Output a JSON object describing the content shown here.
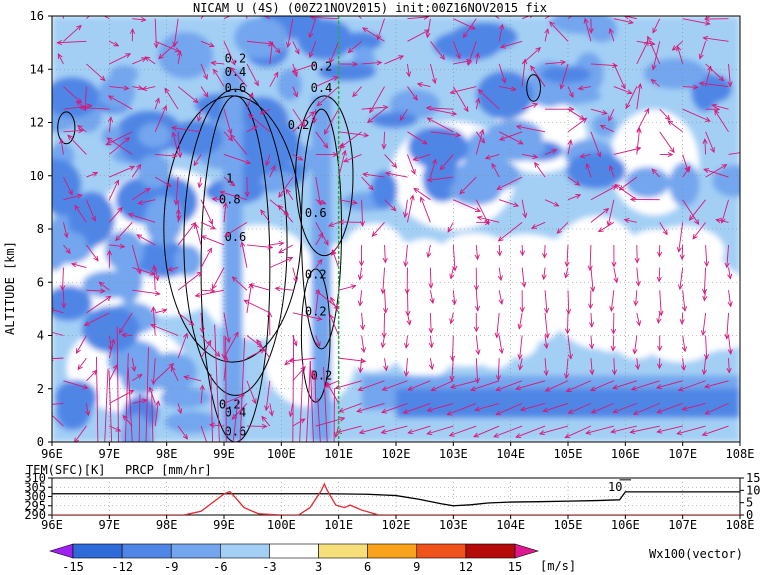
{
  "chart_data": [
    {
      "type": "heatmap",
      "title": "NICAM U (4S) (00Z21NOV2015) init:00Z16NOV2015 fix",
      "xlabel": "",
      "ylabel": "ALTITUDE [km]",
      "xlim": [
        96,
        108
      ],
      "ylim": [
        0,
        16
      ],
      "x_tick_labels": [
        "96E",
        "97E",
        "98E",
        "99E",
        "100E",
        "101E",
        "102E",
        "103E",
        "104E",
        "105E",
        "106E",
        "107E",
        "108E"
      ],
      "y_tick_labels": [
        "0",
        "2",
        "4",
        "6",
        "8",
        "10",
        "12",
        "14",
        "16"
      ],
      "x_ticks": [
        96,
        97,
        98,
        99,
        100,
        101,
        102,
        103,
        104,
        105,
        106,
        107,
        108
      ],
      "y_ticks": [
        0,
        2,
        4,
        6,
        8,
        10,
        12,
        14,
        16
      ],
      "grid": true,
      "marker_line_lon": 101.0,
      "contour_labels": [
        {
          "text": "0.2",
          "lon": 99.2,
          "alt": 14.4
        },
        {
          "text": "0.4",
          "lon": 99.2,
          "alt": 13.9
        },
        {
          "text": "0.6",
          "lon": 99.2,
          "alt": 13.3
        },
        {
          "text": "1",
          "lon": 99.1,
          "alt": 9.9
        },
        {
          "text": "0.8",
          "lon": 99.1,
          "alt": 9.1
        },
        {
          "text": "0.6",
          "lon": 99.2,
          "alt": 7.7
        },
        {
          "text": "0.2",
          "lon": 99.1,
          "alt": 1.4
        },
        {
          "text": "0.4",
          "lon": 99.2,
          "alt": 1.1
        },
        {
          "text": "0.6",
          "lon": 99.2,
          "alt": 0.4
        },
        {
          "text": "0.2",
          "lon": 100.7,
          "alt": 14.1
        },
        {
          "text": "0.4",
          "lon": 100.7,
          "alt": 13.3
        },
        {
          "text": "0.2",
          "lon": 100.3,
          "alt": 11.9
        },
        {
          "text": "0.6",
          "lon": 100.6,
          "alt": 8.6
        },
        {
          "text": "0.2",
          "lon": 100.6,
          "alt": 6.3
        },
        {
          "text": "0.2",
          "lon": 100.6,
          "alt": 4.9
        },
        {
          "text": "0.2",
          "lon": 100.7,
          "alt": 2.5
        }
      ],
      "color_bar": {
        "levels": [
          "-15",
          "-12",
          "-9",
          "-6",
          "-3",
          "3",
          "6",
          "9",
          "12",
          "15"
        ],
        "colors": [
          "#a020f0",
          "#2e6ad8",
          "#4f86e6",
          "#73a6ee",
          "#a3cff5",
          "#ffffff",
          "#f6df7a",
          "#f9a31c",
          "#f0521c",
          "#b40a0a",
          "#e01890"
        ],
        "unit": "[m/s]",
        "vector_note": "Wx100(vector)"
      },
      "vector_color": "#d6187a",
      "field_colors": {
        "strong_neg": "#4f86e6",
        "mid_neg": "#73a6ee",
        "weak_neg": "#a3cff5",
        "neutral": "#ffffff"
      }
    },
    {
      "type": "line",
      "xlim": [
        96,
        108
      ],
      "x_tick_labels": [
        "96E",
        "97E",
        "98E",
        "99E",
        "100E",
        "101E",
        "102E",
        "103E",
        "104E",
        "105E",
        "106E",
        "107E",
        "108E"
      ],
      "left_axis": {
        "label": "TEM(SFC)[K]",
        "ylim": [
          290,
          310
        ],
        "tick_labels": [
          "290",
          "295",
          "300",
          "305",
          "310"
        ],
        "color": "#000000"
      },
      "right_axis": {
        "label": "PRCP [mm/hr]",
        "ylim": [
          0,
          15
        ],
        "tick_labels": [
          "0",
          "5",
          "10",
          "15"
        ],
        "color": "#e8242a"
      },
      "annotation": "10",
      "series": [
        {
          "name": "TEM(SFC)[K]",
          "axis": "left",
          "color": "#000000",
          "x": [
            96,
            97,
            98,
            99,
            100,
            100.6,
            101,
            101.5,
            102,
            102.4,
            102.8,
            103,
            103.3,
            103.6,
            104,
            104.5,
            105,
            105.5,
            105.9,
            106,
            106.2,
            107,
            108
          ],
          "y": [
            301.5,
            301.5,
            301.5,
            301.5,
            301.5,
            301.5,
            301.4,
            301.2,
            300.5,
            298.5,
            296,
            295,
            295.5,
            296.5,
            297,
            297.2,
            297.5,
            297.8,
            298.2,
            302.5,
            302.5,
            302.5,
            302.5
          ]
        },
        {
          "name": "PRCP [mm/hr]",
          "axis": "right",
          "color": "#e8242a",
          "x": [
            96,
            98.3,
            98.6,
            98.8,
            99.0,
            99.1,
            99.2,
            99.35,
            99.6,
            100,
            100.3,
            100.5,
            100.7,
            100.75,
            100.8,
            100.95,
            101.1,
            101.2,
            101.4,
            101.7,
            102,
            108
          ],
          "y": [
            0,
            0,
            1.5,
            5,
            8.5,
            9.5,
            7,
            3,
            0.5,
            0,
            0,
            3,
            10,
            12.6,
            10,
            4,
            3,
            4,
            2,
            0,
            0,
            0
          ]
        }
      ]
    }
  ]
}
